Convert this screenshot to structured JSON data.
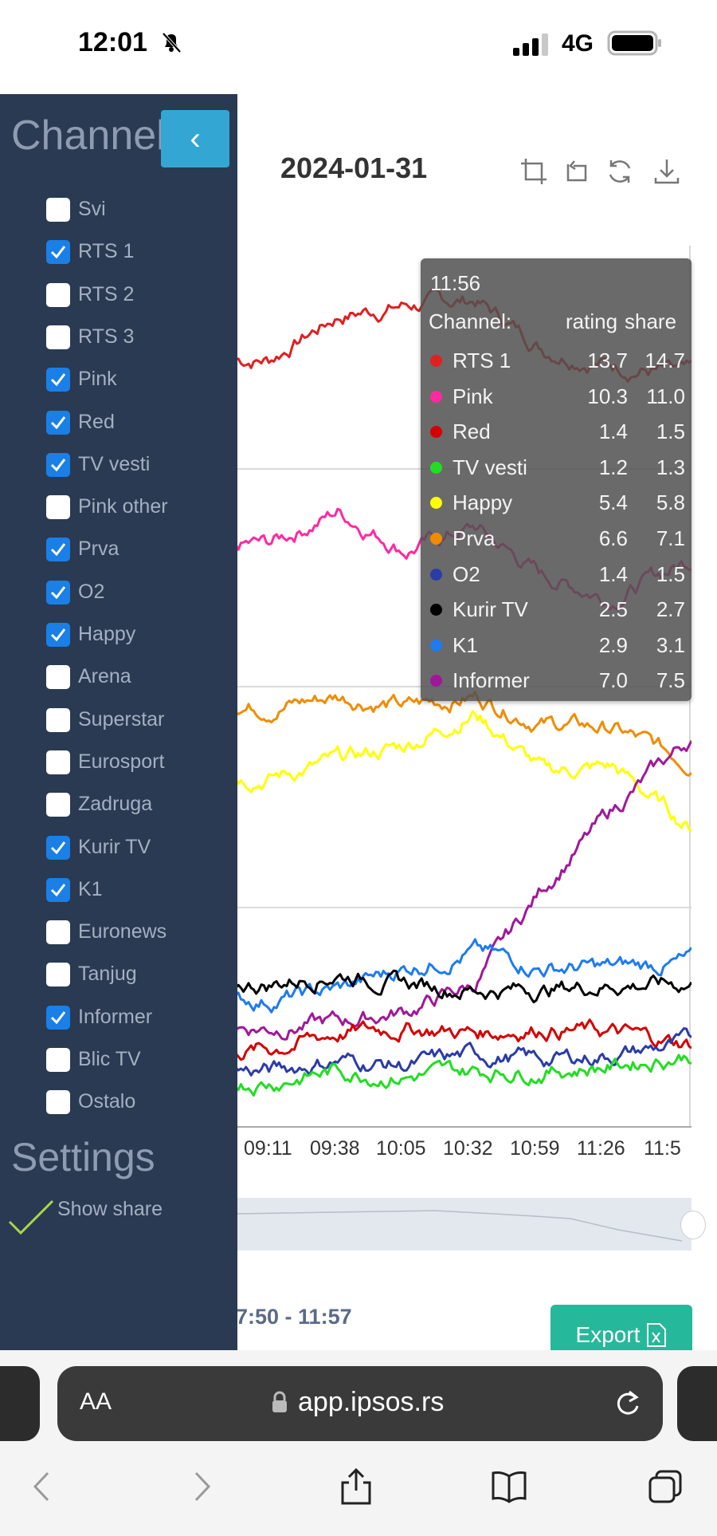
{
  "status_bar": {
    "time": "12:01",
    "network": "4G"
  },
  "header": {
    "date": "2024-01-31"
  },
  "toolbar": {
    "icons": [
      "crop-icon",
      "crop-reset-icon",
      "refresh-icon",
      "download-icon"
    ]
  },
  "tooltip": {
    "time": "11:56",
    "col_channel": "Channel:",
    "col_rating": "rating",
    "col_share": "share",
    "rows": [
      {
        "name": "RTS 1",
        "rating": "13.7",
        "share": "14.7",
        "color": "#e02020"
      },
      {
        "name": "Pink",
        "rating": "10.3",
        "share": "11.0",
        "color": "#ff2aa0"
      },
      {
        "name": "Red",
        "rating": "1.4",
        "share": "1.5",
        "color": "#d40000"
      },
      {
        "name": "TV vesti",
        "rating": "1.2",
        "share": "1.3",
        "color": "#22dd22"
      },
      {
        "name": "Happy",
        "rating": "5.4",
        "share": "5.8",
        "color": "#ffff00"
      },
      {
        "name": "Prva",
        "rating": "6.6",
        "share": "7.1",
        "color": "#f08c00"
      },
      {
        "name": "O2",
        "rating": "1.4",
        "share": "1.5",
        "color": "#2b3ca8"
      },
      {
        "name": "Kurir TV",
        "rating": "2.5",
        "share": "2.7",
        "color": "#000000"
      },
      {
        "name": "K1",
        "rating": "2.9",
        "share": "3.1",
        "color": "#1e7bf0"
      },
      {
        "name": "Informer",
        "rating": "7.0",
        "share": "7.5",
        "color": "#a0189a"
      }
    ]
  },
  "chart_data": {
    "type": "line",
    "x_ticks": [
      "09:11",
      "09:38",
      "10:05",
      "10:32",
      "10:59",
      "11:26",
      "11:5"
    ],
    "series": [
      {
        "name": "RTS 1",
        "color": "#e02020",
        "x": [
          "09:11",
          "09:38",
          "10:05",
          "10:32",
          "10:59",
          "11:26",
          "11:56"
        ],
        "values": [
          14.0,
          14.8,
          15.0,
          15.1,
          14.2,
          13.9,
          13.7
        ]
      },
      {
        "name": "Pink",
        "color": "#ff2aa0",
        "x": [
          "09:11",
          "09:38",
          "10:05",
          "10:32",
          "10:59",
          "11:26",
          "11:56"
        ],
        "values": [
          10.6,
          11.2,
          10.5,
          10.9,
          10.0,
          9.6,
          10.3
        ]
      },
      {
        "name": "Prva",
        "color": "#f08c00",
        "x": [
          "09:11",
          "09:38",
          "10:05",
          "10:32",
          "10:59",
          "11:26",
          "11:56"
        ],
        "values": [
          7.6,
          7.8,
          7.6,
          7.8,
          7.3,
          7.2,
          6.6
        ]
      },
      {
        "name": "Happy",
        "color": "#ffff00",
        "x": [
          "09:11",
          "09:38",
          "10:05",
          "10:32",
          "10:59",
          "11:26",
          "11:56"
        ],
        "values": [
          6.3,
          6.6,
          6.9,
          7.5,
          6.4,
          6.5,
          5.4
        ]
      },
      {
        "name": "Informer",
        "color": "#a0189a",
        "x": [
          "09:11",
          "09:38",
          "10:05",
          "10:32",
          "10:59",
          "11:26",
          "11:56"
        ],
        "values": [
          1.7,
          1.8,
          2.0,
          2.5,
          4.3,
          5.7,
          7.0
        ]
      },
      {
        "name": "K1",
        "color": "#1e7bf0",
        "x": [
          "09:11",
          "09:38",
          "10:05",
          "10:32",
          "10:59",
          "11:26",
          "11:56"
        ],
        "values": [
          2.2,
          2.4,
          2.8,
          3.1,
          2.8,
          2.8,
          2.9
        ]
      },
      {
        "name": "Kurir TV",
        "color": "#000000",
        "x": [
          "09:11",
          "09:38",
          "10:05",
          "10:32",
          "10:59",
          "11:26",
          "11:56"
        ],
        "values": [
          2.5,
          2.7,
          2.5,
          2.4,
          2.4,
          2.5,
          2.5
        ]
      },
      {
        "name": "Red",
        "color": "#d40000",
        "x": [
          "09:11",
          "09:38",
          "10:05",
          "10:32",
          "10:59",
          "11:26",
          "11:56"
        ],
        "values": [
          1.3,
          1.6,
          1.7,
          1.6,
          1.7,
          1.6,
          1.4
        ]
      },
      {
        "name": "O2",
        "color": "#2b3ca8",
        "x": [
          "09:11",
          "09:38",
          "10:05",
          "10:32",
          "10:59",
          "11:26",
          "11:56"
        ],
        "values": [
          0.9,
          1.1,
          1.0,
          1.2,
          1.1,
          1.2,
          1.4
        ]
      },
      {
        "name": "TV vesti",
        "color": "#22dd22",
        "x": [
          "09:11",
          "09:38",
          "10:05",
          "10:32",
          "10:59",
          "11:26",
          "11:56"
        ],
        "values": [
          0.7,
          0.9,
          0.8,
          0.9,
          0.9,
          1.0,
          1.2
        ]
      }
    ]
  },
  "range": "7:50 - 11:57",
  "export_label": "Export",
  "sidebar": {
    "title": "Channel",
    "collapse_label": "‹",
    "channels": [
      {
        "label": "Svi",
        "checked": false
      },
      {
        "label": "RTS 1",
        "checked": true
      },
      {
        "label": "RTS 2",
        "checked": false
      },
      {
        "label": "RTS 3",
        "checked": false
      },
      {
        "label": "Pink",
        "checked": true
      },
      {
        "label": "Red",
        "checked": true
      },
      {
        "label": "TV vesti",
        "checked": true
      },
      {
        "label": "Pink other",
        "checked": false
      },
      {
        "label": "Prva",
        "checked": true
      },
      {
        "label": "O2",
        "checked": true
      },
      {
        "label": "Happy",
        "checked": true
      },
      {
        "label": "Arena",
        "checked": false
      },
      {
        "label": "Superstar",
        "checked": false
      },
      {
        "label": "Eurosport",
        "checked": false
      },
      {
        "label": "Zadruga",
        "checked": false
      },
      {
        "label": "Kurir TV",
        "checked": true
      },
      {
        "label": "K1",
        "checked": true
      },
      {
        "label": "Euronews",
        "checked": false
      },
      {
        "label": "Tanjug",
        "checked": false
      },
      {
        "label": "Informer",
        "checked": true
      },
      {
        "label": "Blic TV",
        "checked": false
      },
      {
        "label": "Ostalo",
        "checked": false
      }
    ],
    "settings_title": "Settings",
    "show_share_label": "Show share"
  },
  "browser": {
    "aa_label": "AA",
    "url": "app.ipsos.rs"
  }
}
